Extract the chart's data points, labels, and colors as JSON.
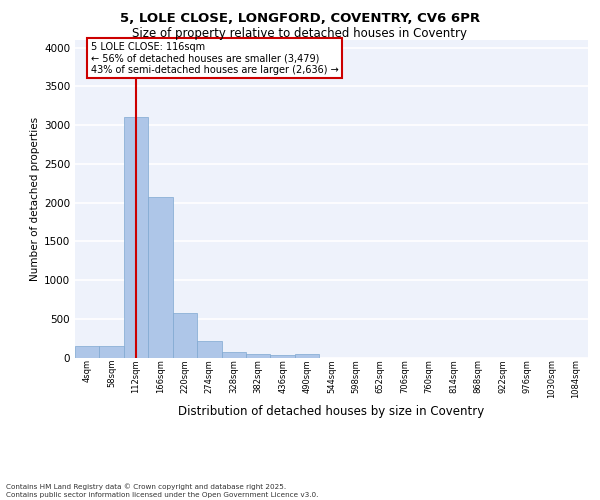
{
  "title_line1": "5, LOLE CLOSE, LONGFORD, COVENTRY, CV6 6PR",
  "title_line2": "Size of property relative to detached houses in Coventry",
  "xlabel": "Distribution of detached houses by size in Coventry",
  "ylabel": "Number of detached properties",
  "bins": [
    "4sqm",
    "58sqm",
    "112sqm",
    "166sqm",
    "220sqm",
    "274sqm",
    "328sqm",
    "382sqm",
    "436sqm",
    "490sqm",
    "544sqm",
    "598sqm",
    "652sqm",
    "706sqm",
    "760sqm",
    "814sqm",
    "868sqm",
    "922sqm",
    "976sqm",
    "1030sqm",
    "1084sqm"
  ],
  "values": [
    150,
    150,
    3100,
    2075,
    580,
    215,
    75,
    45,
    30,
    45,
    0,
    0,
    0,
    0,
    0,
    0,
    0,
    0,
    0,
    0,
    0
  ],
  "bar_color": "#aec6e8",
  "bar_edge_color": "#7fa8d0",
  "vline_x_index": 2,
  "vline_color": "#cc0000",
  "annotation_line1": "5 LOLE CLOSE: 116sqm",
  "annotation_line2": "← 56% of detached houses are smaller (3,479)",
  "annotation_line3": "43% of semi-detached houses are larger (2,636) →",
  "annotation_box_color": "#cc0000",
  "ylim": [
    0,
    4100
  ],
  "yticks": [
    0,
    500,
    1000,
    1500,
    2000,
    2500,
    3000,
    3500,
    4000
  ],
  "background_color": "#eef2fb",
  "grid_color": "#ffffff",
  "footer_line1": "Contains HM Land Registry data © Crown copyright and database right 2025.",
  "footer_line2": "Contains public sector information licensed under the Open Government Licence v3.0."
}
